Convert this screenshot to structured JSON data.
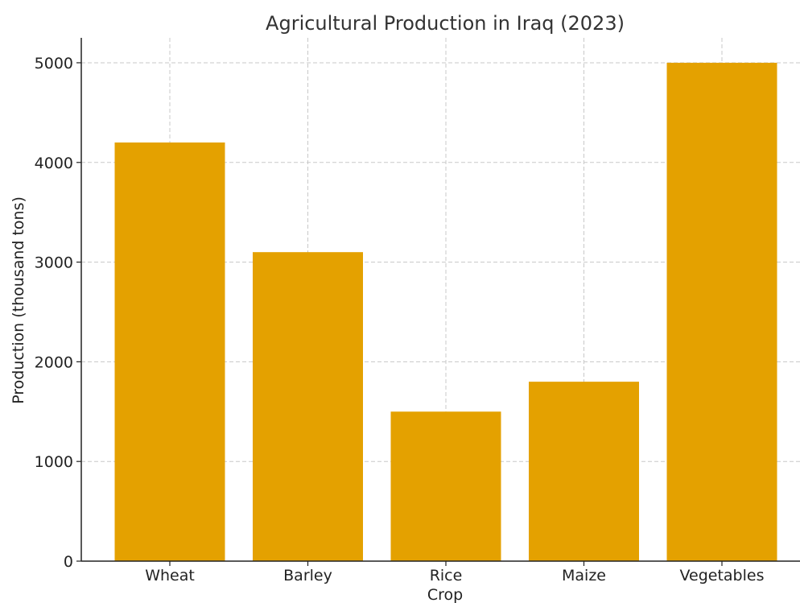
{
  "chart_data": {
    "type": "bar",
    "title": "Agricultural Production in Iraq (2023)",
    "xlabel": "Crop",
    "ylabel": "Production (thousand tons)",
    "categories": [
      "Wheat",
      "Barley",
      "Rice",
      "Maize",
      "Vegetables"
    ],
    "values": [
      4200,
      3100,
      1500,
      1800,
      5000
    ],
    "ylim": [
      0,
      5250
    ],
    "yticks": [
      0,
      1000,
      2000,
      3000,
      4000,
      5000
    ],
    "grid": true,
    "bar_color": "#E4A100",
    "legend": "none"
  }
}
